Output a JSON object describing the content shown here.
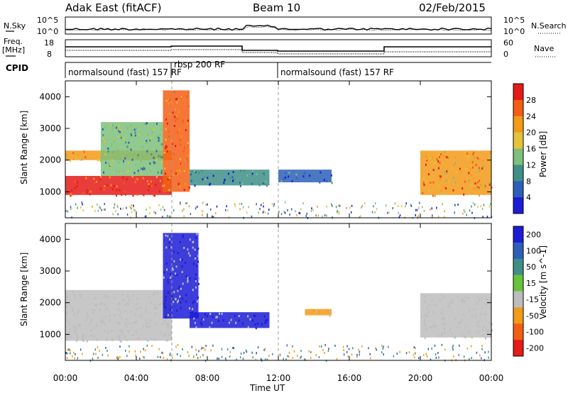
{
  "header": {
    "radar": "Adak East (fitACF)",
    "beam": "Beam 10",
    "date": "02/Feb/2015"
  },
  "strip_labels": {
    "nsky": "N.Sky",
    "nsearch": "N.Search",
    "freq_top": "Freq.",
    "freq_unit": "[MHz]",
    "nave": "Nave",
    "cpid": "CPID",
    "noise_tick_hi": "10^5",
    "noise_tick_lo": "10^0",
    "freq_tick_hi": "18",
    "freq_tick_lo": "8",
    "nave_tick_hi": "60",
    "nave_tick_lo": "0"
  },
  "cpid_segments": [
    {
      "start_hour": 0,
      "end_hour": 6,
      "label": "normalsound (fast) 157 RF"
    },
    {
      "start_hour": 6,
      "end_hour": 12,
      "label": "rbsp 200 RF"
    },
    {
      "start_hour": 12,
      "end_hour": 24,
      "label": "normalsound (fast) 157 RF"
    }
  ],
  "chart_data": [
    {
      "type": "heatmap",
      "title": "Power",
      "xlabel": "Time UT",
      "ylabel": "Slant Range [km]",
      "xlim": [
        0,
        24
      ],
      "ylim": [
        180,
        4500
      ],
      "x_ticks": [
        "00:00",
        "04:00",
        "08:00",
        "12:00",
        "16:00",
        "20:00",
        "00:00"
      ],
      "y_ticks": [
        1000,
        2000,
        3000,
        4000
      ],
      "colorbar": {
        "label": "Power [dB]",
        "ticks": [
          4,
          8,
          12,
          16,
          20,
          24,
          28
        ],
        "range": [
          0,
          32
        ],
        "colors": [
          "#1c1cd6",
          "#2d5fb8",
          "#3f8f88",
          "#7ec07a",
          "#e4c23a",
          "#f39a18",
          "#f35e14",
          "#e41b17"
        ]
      },
      "regions": [
        {
          "feature": "strong low-range echo band",
          "start_hour": 0.0,
          "end_hour": 6.0,
          "range_km": [
            900,
            1500
          ],
          "power_db": 28
        },
        {
          "feature": "upper echo band",
          "start_hour": 0.0,
          "end_hour": 6.0,
          "range_km": [
            2000,
            2300
          ],
          "power_db": 22
        },
        {
          "feature": "spread echoes",
          "start_hour": 2.0,
          "end_hour": 5.5,
          "range_km": [
            1500,
            3200
          ],
          "power_db": 12
        },
        {
          "feature": "rising arc",
          "start_hour": 5.5,
          "end_hour": 7.0,
          "range_km": [
            1000,
            4200
          ],
          "power_db": 24
        },
        {
          "feature": "mid-range patch",
          "start_hour": 7.0,
          "end_hour": 11.5,
          "range_km": [
            1200,
            1700
          ],
          "power_db": 8
        },
        {
          "feature": "weak patch",
          "start_hour": 12.0,
          "end_hour": 15.0,
          "range_km": [
            1300,
            1700
          ],
          "power_db": 6
        },
        {
          "feature": "evening echo band",
          "start_hour": 20.0,
          "end_hour": 24.0,
          "range_km": [
            900,
            2300
          ],
          "power_db": 22
        }
      ]
    },
    {
      "type": "heatmap",
      "title": "Velocity",
      "xlabel": "Time UT",
      "ylabel": "Slant Range [km]",
      "xlim": [
        0,
        24
      ],
      "ylim": [
        180,
        4500
      ],
      "x_ticks": [
        "00:00",
        "04:00",
        "08:00",
        "12:00",
        "16:00",
        "20:00",
        "00:00"
      ],
      "y_ticks": [
        1000,
        2000,
        3000,
        4000
      ],
      "colorbar": {
        "label": "Velocity [m s^-1]",
        "ticks": [
          "200",
          "100",
          "50",
          "15",
          "-15",
          "-50",
          "-100",
          "-200"
        ],
        "colors": [
          "#1c1cd6",
          "#2d5fb8",
          "#3f8f88",
          "#68c23a",
          "#bdbdbd",
          "#f39a18",
          "#f35e14",
          "#e41b17"
        ]
      },
      "regions": [
        {
          "feature": "ground scatter band",
          "start_hour": 0.0,
          "end_hour": 6.0,
          "range_km": [
            800,
            2400
          ],
          "velocity": 0
        },
        {
          "feature": "blue arc",
          "start_hour": 5.5,
          "end_hour": 7.5,
          "range_km": [
            1500,
            4200
          ],
          "velocity": 200
        },
        {
          "feature": "blue patch",
          "start_hour": 7.0,
          "end_hour": 11.5,
          "range_km": [
            1200,
            1700
          ],
          "velocity": 200
        },
        {
          "feature": "orange patch",
          "start_hour": 13.5,
          "end_hour": 15.0,
          "range_km": [
            1600,
            1800
          ],
          "velocity": -50
        },
        {
          "feature": "evening ground scatter",
          "start_hour": 20.0,
          "end_hour": 24.0,
          "range_km": [
            900,
            2300
          ],
          "velocity": 0
        }
      ]
    }
  ]
}
